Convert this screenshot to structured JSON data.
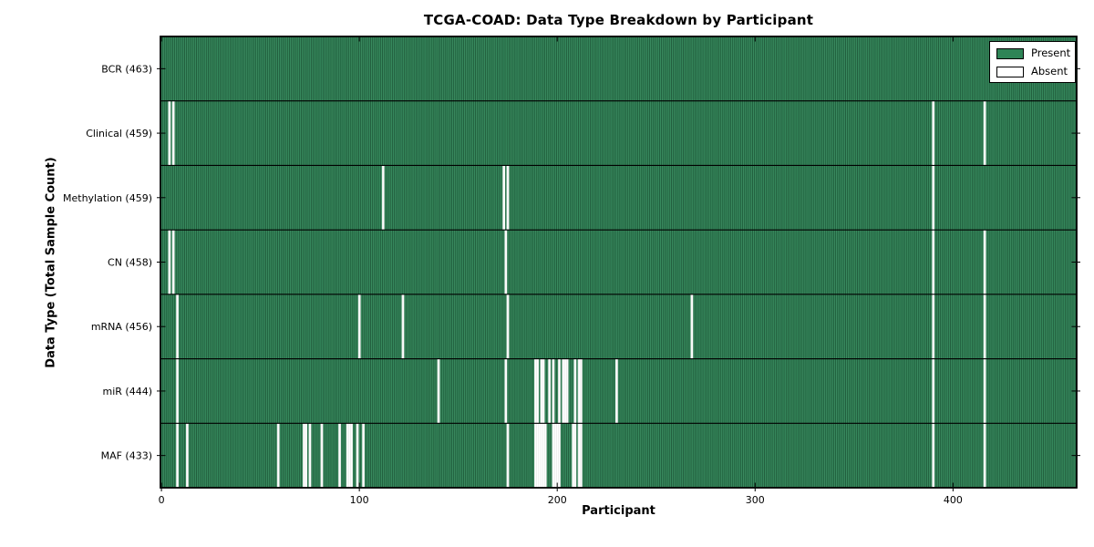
{
  "chart_data": {
    "type": "heatmap",
    "title": "TCGA-COAD: Data Type Breakdown by Participant",
    "xlabel": "Participant",
    "ylabel": "Data Type (Total Sample Count)",
    "n_participants": 463,
    "x_ticks": [
      0,
      100,
      200,
      300,
      400
    ],
    "legend_position": "upper right",
    "grid": false,
    "legend": [
      {
        "label": "Present",
        "value": "present"
      },
      {
        "label": "Absent",
        "value": "absent"
      }
    ],
    "rows": [
      {
        "label": "BCR (463)",
        "name": "BCR",
        "total": 463,
        "absent": []
      },
      {
        "label": "Clinical (459)",
        "name": "Clinical",
        "total": 459,
        "absent": [
          4,
          6,
          390,
          416
        ]
      },
      {
        "label": "Methylation (459)",
        "name": "Methylation",
        "total": 459,
        "absent": [
          112,
          173,
          175,
          390
        ]
      },
      {
        "label": "CN (458)",
        "name": "CN",
        "total": 458,
        "absent": [
          4,
          6,
          174,
          390,
          416
        ]
      },
      {
        "label": "mRNA (456)",
        "name": "mRNA",
        "total": 456,
        "absent": [
          8,
          100,
          122,
          175,
          268,
          390,
          416
        ]
      },
      {
        "label": "miR (444)",
        "name": "miR",
        "total": 444,
        "absent": [
          8,
          140,
          174,
          189,
          190,
          192,
          193,
          196,
          198,
          201,
          203,
          204,
          205,
          209,
          211,
          212,
          230,
          390,
          416
        ]
      },
      {
        "label": "MAF (433)",
        "name": "MAF",
        "total": 433,
        "absent": [
          8,
          13,
          59,
          72,
          73,
          75,
          81,
          90,
          94,
          95,
          96,
          99,
          102,
          175,
          189,
          190,
          191,
          192,
          193,
          194,
          198,
          199,
          200,
          201,
          208,
          209,
          211,
          212,
          390,
          416
        ]
      }
    ],
    "colors": {
      "present": "#2e8456",
      "absent": "#ffffff",
      "bar_edge": "rgba(0,0,0,0.38)",
      "bar_highlight": "rgba(255,255,255,0.10)",
      "frame": "#000000",
      "background": "#ffffff"
    }
  }
}
